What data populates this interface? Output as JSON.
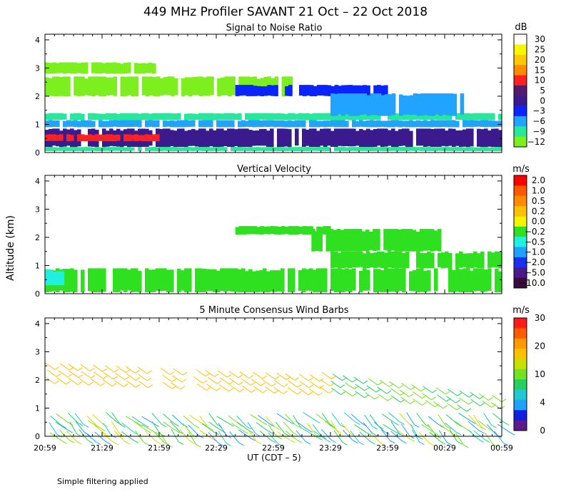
{
  "title": "449 MHz Profiler SAVANT 21 Oct – 22 Oct 2018",
  "y_axis_label": "Altitude (km)",
  "x_axis_label": "UT  (CDT – 5)",
  "footnote": "Simple filtering applied",
  "x_ticks": [
    "20:59",
    "21:29",
    "21:59",
    "22:29",
    "22:59",
    "23:29",
    "23:59",
    "00:29",
    "00:59"
  ],
  "y_ticks": [
    "0",
    "1",
    "2",
    "3",
    "4"
  ],
  "chart_data": [
    {
      "type": "heatmap",
      "title": "Signal to Noise Ratio",
      "unit": "dB",
      "ylim": [
        0,
        4.2
      ],
      "xlim": [
        0,
        240
      ],
      "colorbar_labels": [
        "30",
        "25",
        "20",
        "15",
        "10",
        "5",
        "0",
        "−3",
        "−6",
        "−9",
        "−12"
      ],
      "colorbar_colors": [
        "#ffffff",
        "#f7f700",
        "#ffc800",
        "#ff8c00",
        "#ff2020",
        "#541a6e",
        "#3a1a8c",
        "#0a24ff",
        "#20a4ff",
        "#26e89a",
        "#7eef1e"
      ],
      "regions": [
        {
          "level": "−9",
          "x": [
            0,
            240
          ],
          "y": [
            0.05,
            0.2
          ]
        },
        {
          "level": "−6",
          "x": [
            0,
            240
          ],
          "y": [
            0.9,
            1.15
          ]
        },
        {
          "level": "−9",
          "x": [
            0,
            240
          ],
          "y": [
            1.15,
            1.4
          ]
        },
        {
          "level": "0",
          "x": [
            0,
            240
          ],
          "y": [
            0.2,
            0.85
          ]
        },
        {
          "level": "10",
          "x": [
            0,
            60
          ],
          "y": [
            0.4,
            0.65
          ]
        },
        {
          "level": "−12",
          "x": [
            0,
            130
          ],
          "y": [
            2.0,
            2.7
          ]
        },
        {
          "level": "−3",
          "x": [
            100,
            180
          ],
          "y": [
            2.0,
            2.4
          ]
        },
        {
          "level": "−6",
          "x": [
            150,
            220
          ],
          "y": [
            1.3,
            2.1
          ]
        },
        {
          "level": "−12",
          "x": [
            0,
            60
          ],
          "y": [
            2.8,
            3.2
          ]
        }
      ]
    },
    {
      "type": "heatmap",
      "title": "Vertical Velocity",
      "unit": "m/s",
      "ylim": [
        0,
        4.2
      ],
      "xlim": [
        0,
        240
      ],
      "colorbar_labels": [
        "2.0",
        "1.0",
        "0.5",
        "0.2",
        "0.0",
        "−0.2",
        "−0.5",
        "−1.0",
        "−2.0",
        "−5.0",
        "−10.0"
      ],
      "colorbar_colors": [
        "#ff0000",
        "#ff5a00",
        "#ff8c00",
        "#ffc000",
        "#f4f400",
        "#2ee020",
        "#20f0e0",
        "#20a0ff",
        "#1a30f0",
        "#4a1a8c",
        "#3a0a3a"
      ],
      "regions": [
        {
          "level": "−0.2",
          "x": [
            0,
            240
          ],
          "y": [
            0.05,
            0.9
          ]
        },
        {
          "level": "−0.5",
          "x": [
            0,
            10
          ],
          "y": [
            0.3,
            0.85
          ]
        },
        {
          "level": "−0.2",
          "x": [
            150,
            240
          ],
          "y": [
            0.9,
            1.5
          ]
        },
        {
          "level": "−0.2",
          "x": [
            140,
            210
          ],
          "y": [
            1.5,
            2.3
          ]
        },
        {
          "level": "−0.2",
          "x": [
            100,
            150
          ],
          "y": [
            2.1,
            2.4
          ]
        }
      ]
    },
    {
      "type": "wind_barbs",
      "title": "5 Minute Consensus Wind Barbs",
      "unit": "m/s",
      "ylim": [
        0,
        4.2
      ],
      "xlim": [
        0,
        240
      ],
      "colorbar_labels": [
        "30",
        "20",
        "10",
        "4",
        "0"
      ],
      "colorbar_colors": [
        "#ff1a1a",
        "#ff5a00",
        "#ff9a00",
        "#ffc000",
        "#c8e000",
        "#74e020",
        "#24d060",
        "#20c8d0",
        "#20a0ff",
        "#1020e0",
        "#5a1a8c"
      ]
    }
  ]
}
